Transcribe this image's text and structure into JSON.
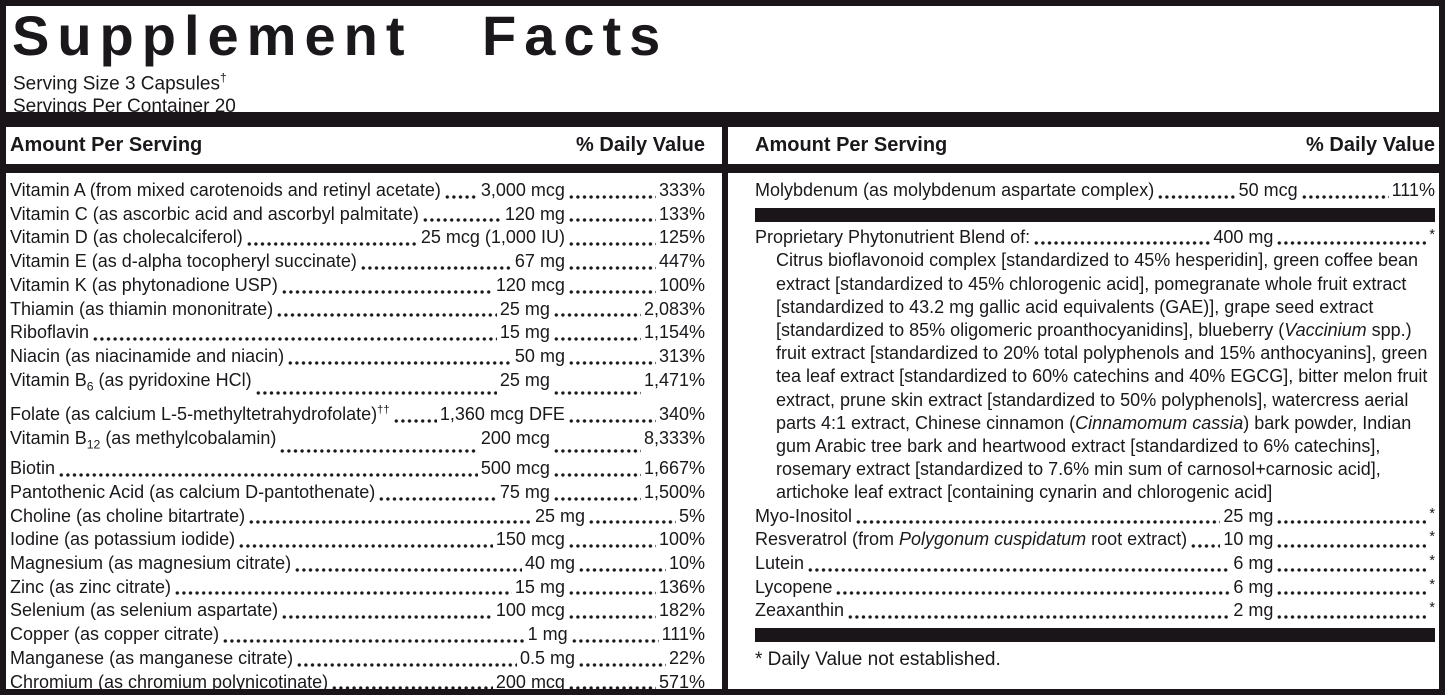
{
  "header": {
    "title": "Supplement Facts",
    "serving_size": "Serving Size 3 Capsules",
    "serving_size_mark": "†",
    "servings_per_container": "Servings Per Container 20"
  },
  "columns_header": {
    "amount": "Amount Per Serving",
    "dv": "% Daily Value"
  },
  "colors": {
    "bar": "#1a1518",
    "text": "#1b181c",
    "background": "#ffffff"
  },
  "left_column": {
    "rows": [
      {
        "name": "Vitamin A (from mixed carotenoids and retinyl acetate)",
        "amt": "3,000 mcg",
        "dv": "333%"
      },
      {
        "name": "Vitamin C (as ascorbic acid and ascorbyl palmitate)",
        "amt": "120 mg",
        "dv": "133%"
      },
      {
        "name": "Vitamin D (as cholecalciferol)",
        "amt": "25 mcg (1,000 IU)",
        "dv": "125%"
      },
      {
        "name": "Vitamin E (as d-alpha tocopheryl succinate)",
        "amt": "67 mg",
        "dv": "447%"
      },
      {
        "name": "Vitamin K (as phytonadione USP)",
        "amt": "120 mcg",
        "dv": "100%"
      },
      {
        "name": "Thiamin (as thiamin mononitrate)",
        "amt": "25 mg",
        "dv": "2,083%"
      },
      {
        "name": "Riboflavin",
        "amt": "15 mg",
        "dv": "1,154%"
      },
      {
        "name": "Niacin (as niacinamide and niacin)",
        "amt": "50 mg",
        "dv": "313%"
      },
      {
        "name": [
          {
            "t": "Vitamin B"
          },
          {
            "t": "6",
            "s": "sub"
          },
          {
            "t": " (as pyridoxine HCl)"
          }
        ],
        "amt": "25 mg",
        "dv": "1,471%"
      },
      {
        "name": [
          {
            "t": "Folate (as calcium L-5-methyltetrahydrofolate)"
          },
          {
            "t": "††",
            "s": "sup"
          }
        ],
        "amt": "1,360 mcg DFE",
        "dv": "340%"
      },
      {
        "name": [
          {
            "t": "Vitamin B"
          },
          {
            "t": "12",
            "s": "sub"
          },
          {
            "t": " (as methylcobalamin)"
          }
        ],
        "amt": "200 mcg",
        "dv": "8,333%"
      },
      {
        "name": "Biotin",
        "amt": "500 mcg",
        "dv": "1,667%"
      },
      {
        "name": "Pantothenic Acid (as calcium D-pantothenate)",
        "amt": "75 mg",
        "dv": "1,500%"
      },
      {
        "name": "Choline (as choline bitartrate)",
        "amt": "25 mg",
        "dv": "5%"
      },
      {
        "name": "Iodine (as potassium iodide)",
        "amt": "150 mcg",
        "dv": "100%"
      },
      {
        "name": "Magnesium (as magnesium citrate)",
        "amt": "40 mg",
        "dv": "10%"
      },
      {
        "name": "Zinc (as zinc citrate)",
        "amt": "15 mg",
        "dv": "136%"
      },
      {
        "name": "Selenium (as selenium aspartate)",
        "amt": "100 mcg",
        "dv": "182%"
      },
      {
        "name": "Copper (as copper citrate)",
        "amt": "1 mg",
        "dv": "111%"
      },
      {
        "name": "Manganese (as manganese citrate)",
        "amt": "0.5 mg",
        "dv": "22%"
      },
      {
        "name": "Chromium (as chromium polynicotinate)",
        "amt": "200 mcg",
        "dv": "571%"
      }
    ]
  },
  "right_column": {
    "top_rows": [
      {
        "name": "Molybdenum (as molybdenum aspartate complex)",
        "amt": "50 mcg",
        "dv": "111%"
      }
    ],
    "blend": {
      "row": {
        "name": "Proprietary Phytonutrient Blend of:",
        "amt": "400 mg",
        "dv": "*"
      },
      "description": [
        {
          "t": "Citrus bioflavonoid complex [standardized to 45% hesperidin], green coffee bean extract [standardized to 45% chlorogenic acid], pomegranate whole fruit extract [standardized to 43.2 mg gallic acid equivalents (GAE)], grape seed extract [standardized to 85% oligomeric proanthocyanidins], blueberry ("
        },
        {
          "t": "Vaccinium",
          "s": "i"
        },
        {
          "t": " spp.) fruit extract [standardized to 20% total polyphenols and 15% anthocyanins], green tea leaf extract [standardized to 60% catechins and 40% EGCG], bitter melon fruit extract, prune skin extract [standardized to 50% polyphenols], watercress aerial parts 4:1 extract, Chinese cinnamon ("
        },
        {
          "t": "Cinnamomum cassia",
          "s": "i"
        },
        {
          "t": ") bark powder, Indian gum Arabic tree bark and heartwood extract [standardized to 6% catechins], rosemary extract [standardized to 7.6% min sum of carnosol+carnosic acid], artichoke leaf extract [containing cynarin and chlorogenic acid]"
        }
      ]
    },
    "bottom_rows": [
      {
        "name": "Myo-Inositol",
        "amt": "25 mg",
        "dv": "*"
      },
      {
        "name": [
          {
            "t": "Resveratrol (from "
          },
          {
            "t": "Polygonum cuspidatum",
            "s": "i"
          },
          {
            "t": " root extract)"
          }
        ],
        "amt": "10 mg",
        "dv": "*"
      },
      {
        "name": "Lutein",
        "amt": "6 mg",
        "dv": "*"
      },
      {
        "name": "Lycopene",
        "amt": "6 mg",
        "dv": "*"
      },
      {
        "name": "Zeaxanthin",
        "amt": "2 mg",
        "dv": "*"
      }
    ],
    "footnote": "* Daily Value not established."
  }
}
